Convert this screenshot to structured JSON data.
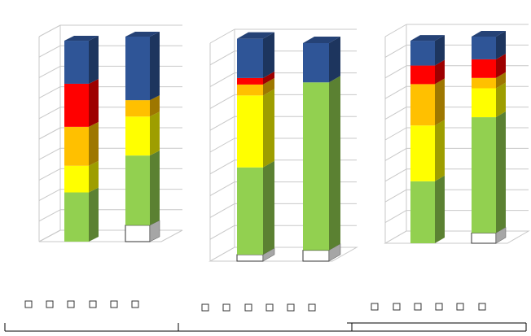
{
  "chart_data": [
    {
      "type": "bar",
      "stacked": true,
      "three_d": true,
      "ylim": [
        0,
        100
      ],
      "grid": true,
      "series_colors": [
        "#ffffff",
        "#92d050",
        "#ffff00",
        "#ffc000",
        "#ff0000",
        "#2f5597"
      ],
      "bars": [
        {
          "segments": [
            0,
            24,
            13,
            19,
            21,
            21
          ]
        },
        {
          "segments": [
            8,
            34,
            19,
            8,
            0,
            31
          ]
        }
      ]
    },
    {
      "type": "bar",
      "stacked": true,
      "three_d": true,
      "ylim": [
        0,
        100
      ],
      "grid": true,
      "series_colors": [
        "#ffffff",
        "#92d050",
        "#ffff00",
        "#ffc000",
        "#ff0000",
        "#2f5597"
      ],
      "bars": [
        {
          "segments": [
            3,
            40,
            33,
            5,
            3,
            18
          ]
        },
        {
          "segments": [
            5,
            77,
            0,
            0,
            0,
            18
          ]
        }
      ]
    },
    {
      "type": "bar",
      "stacked": true,
      "three_d": true,
      "ylim": [
        0,
        100
      ],
      "grid": true,
      "series_colors": [
        "#ffffff",
        "#92d050",
        "#ffff00",
        "#ffc000",
        "#ff0000",
        "#2f5597"
      ],
      "bars": [
        {
          "segments": [
            0,
            30,
            27,
            20,
            9,
            12
          ]
        },
        {
          "segments": [
            5,
            56,
            14,
            5,
            9,
            11
          ]
        }
      ]
    }
  ]
}
